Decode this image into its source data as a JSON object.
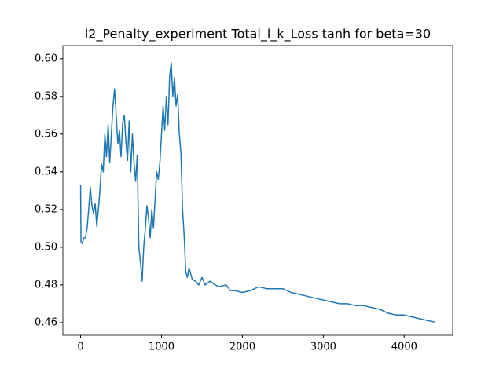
{
  "chart_data": {
    "type": "line",
    "title": "l2_Penalty_experiment Total_l_k_Loss tanh for beta=30",
    "x": [
      0,
      5,
      20,
      40,
      60,
      80,
      100,
      120,
      140,
      160,
      180,
      200,
      230,
      260,
      280,
      300,
      320,
      340,
      360,
      380,
      400,
      420,
      440,
      460,
      480,
      500,
      520,
      540,
      560,
      580,
      600,
      620,
      640,
      660,
      680,
      700,
      720,
      740,
      760,
      780,
      800,
      820,
      840,
      860,
      880,
      900,
      920,
      940,
      960,
      980,
      1000,
      1020,
      1040,
      1060,
      1080,
      1100,
      1120,
      1140,
      1160,
      1180,
      1200,
      1220,
      1240,
      1260,
      1280,
      1300,
      1320,
      1340,
      1380,
      1420,
      1460,
      1500,
      1540,
      1600,
      1700,
      1800,
      1850,
      1900,
      2000,
      2100,
      2200,
      2300,
      2400,
      2500,
      2600,
      2700,
      2800,
      2900,
      3000,
      3100,
      3200,
      3300,
      3400,
      3500,
      3600,
      3700,
      3800,
      3900,
      4000,
      4100,
      4200,
      4300,
      4380
    ],
    "series": [
      {
        "name": "Total_l_k_Loss",
        "color": "#1f77b4",
        "values": [
          0.533,
          0.503,
          0.502,
          0.505,
          0.505,
          0.51,
          0.52,
          0.532,
          0.522,
          0.518,
          0.523,
          0.511,
          0.525,
          0.544,
          0.54,
          0.56,
          0.548,
          0.565,
          0.545,
          0.56,
          0.575,
          0.584,
          0.57,
          0.555,
          0.562,
          0.548,
          0.566,
          0.57,
          0.556,
          0.546,
          0.567,
          0.54,
          0.56,
          0.545,
          0.535,
          0.549,
          0.5,
          0.492,
          0.482,
          0.5,
          0.51,
          0.522,
          0.515,
          0.505,
          0.52,
          0.51,
          0.525,
          0.54,
          0.536,
          0.545,
          0.56,
          0.575,
          0.562,
          0.58,
          0.565,
          0.59,
          0.598,
          0.58,
          0.59,
          0.575,
          0.581,
          0.56,
          0.55,
          0.52,
          0.506,
          0.487,
          0.484,
          0.489,
          0.483,
          0.482,
          0.48,
          0.484,
          0.48,
          0.482,
          0.479,
          0.48,
          0.477,
          0.477,
          0.476,
          0.477,
          0.479,
          0.478,
          0.478,
          0.478,
          0.476,
          0.475,
          0.474,
          0.473,
          0.472,
          0.471,
          0.47,
          0.47,
          0.469,
          0.469,
          0.468,
          0.467,
          0.465,
          0.464,
          0.464,
          0.463,
          0.462,
          0.461,
          0.4603
        ]
      }
    ],
    "xlim": [
      -219,
      4599
    ],
    "ylim": [
      0.4533,
      0.607
    ],
    "xticks": [
      0,
      1000,
      2000,
      3000,
      4000
    ],
    "yticks": [
      0.46,
      0.48,
      {
        "value": 0.5,
        "label": "0.50"
      },
      0.52,
      0.54,
      0.56,
      0.58,
      {
        "value": 0.6,
        "label": "0.60"
      }
    ]
  }
}
